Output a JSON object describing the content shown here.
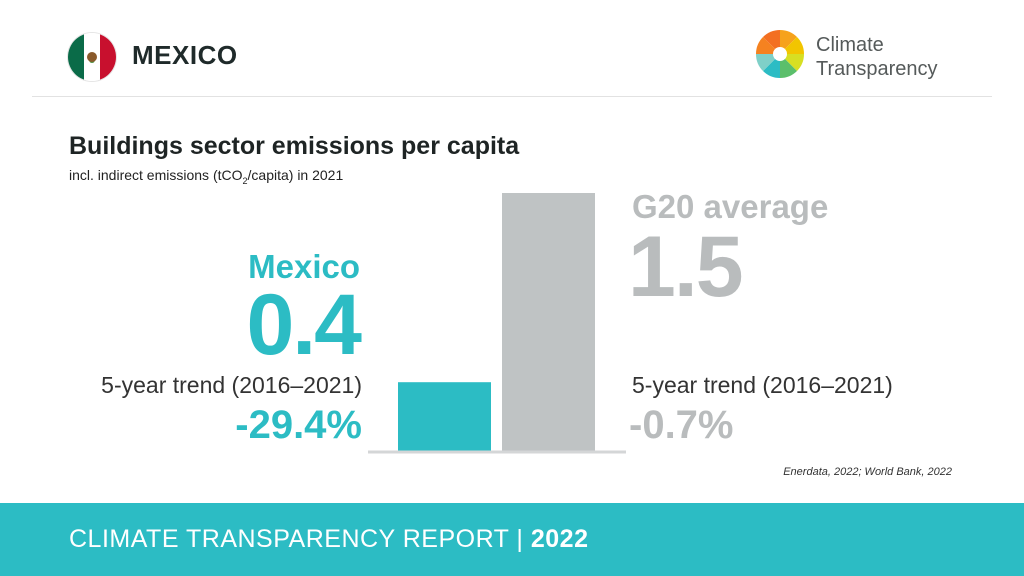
{
  "header": {
    "country": "MEXICO",
    "logo_line1": "Climate",
    "logo_line2": "Transparency"
  },
  "title": "Buildings sector emissions per capita",
  "subtitle": {
    "before": "incl. indirect emissions (tCO",
    "sub": "2",
    "after": "/capita) in 2021"
  },
  "chart_data": {
    "type": "bar",
    "categories": [
      "Mexico",
      "G20 average"
    ],
    "values": [
      0.4,
      1.5
    ],
    "value_labels": [
      "0.4",
      "1.5"
    ],
    "trend_label": "5-year trend (2016–2021)",
    "trends": [
      "-29.4%",
      "-0.7%"
    ],
    "colors": [
      "#2cbcc4",
      "#bfc3c4"
    ],
    "grid": false,
    "axes": false
  },
  "source": "Enerdata, 2022; World Bank, 2022",
  "footer": {
    "label": "CLIMATE TRANSPARENCY REPORT | ",
    "year": "2022"
  },
  "colors": {
    "accent": "#2cbcc4",
    "g20": "#bfc3c4",
    "text_dark": "#1e2424"
  },
  "icons": [
    "mexico-flag-icon",
    "climate-transparency-logo-icon"
  ]
}
